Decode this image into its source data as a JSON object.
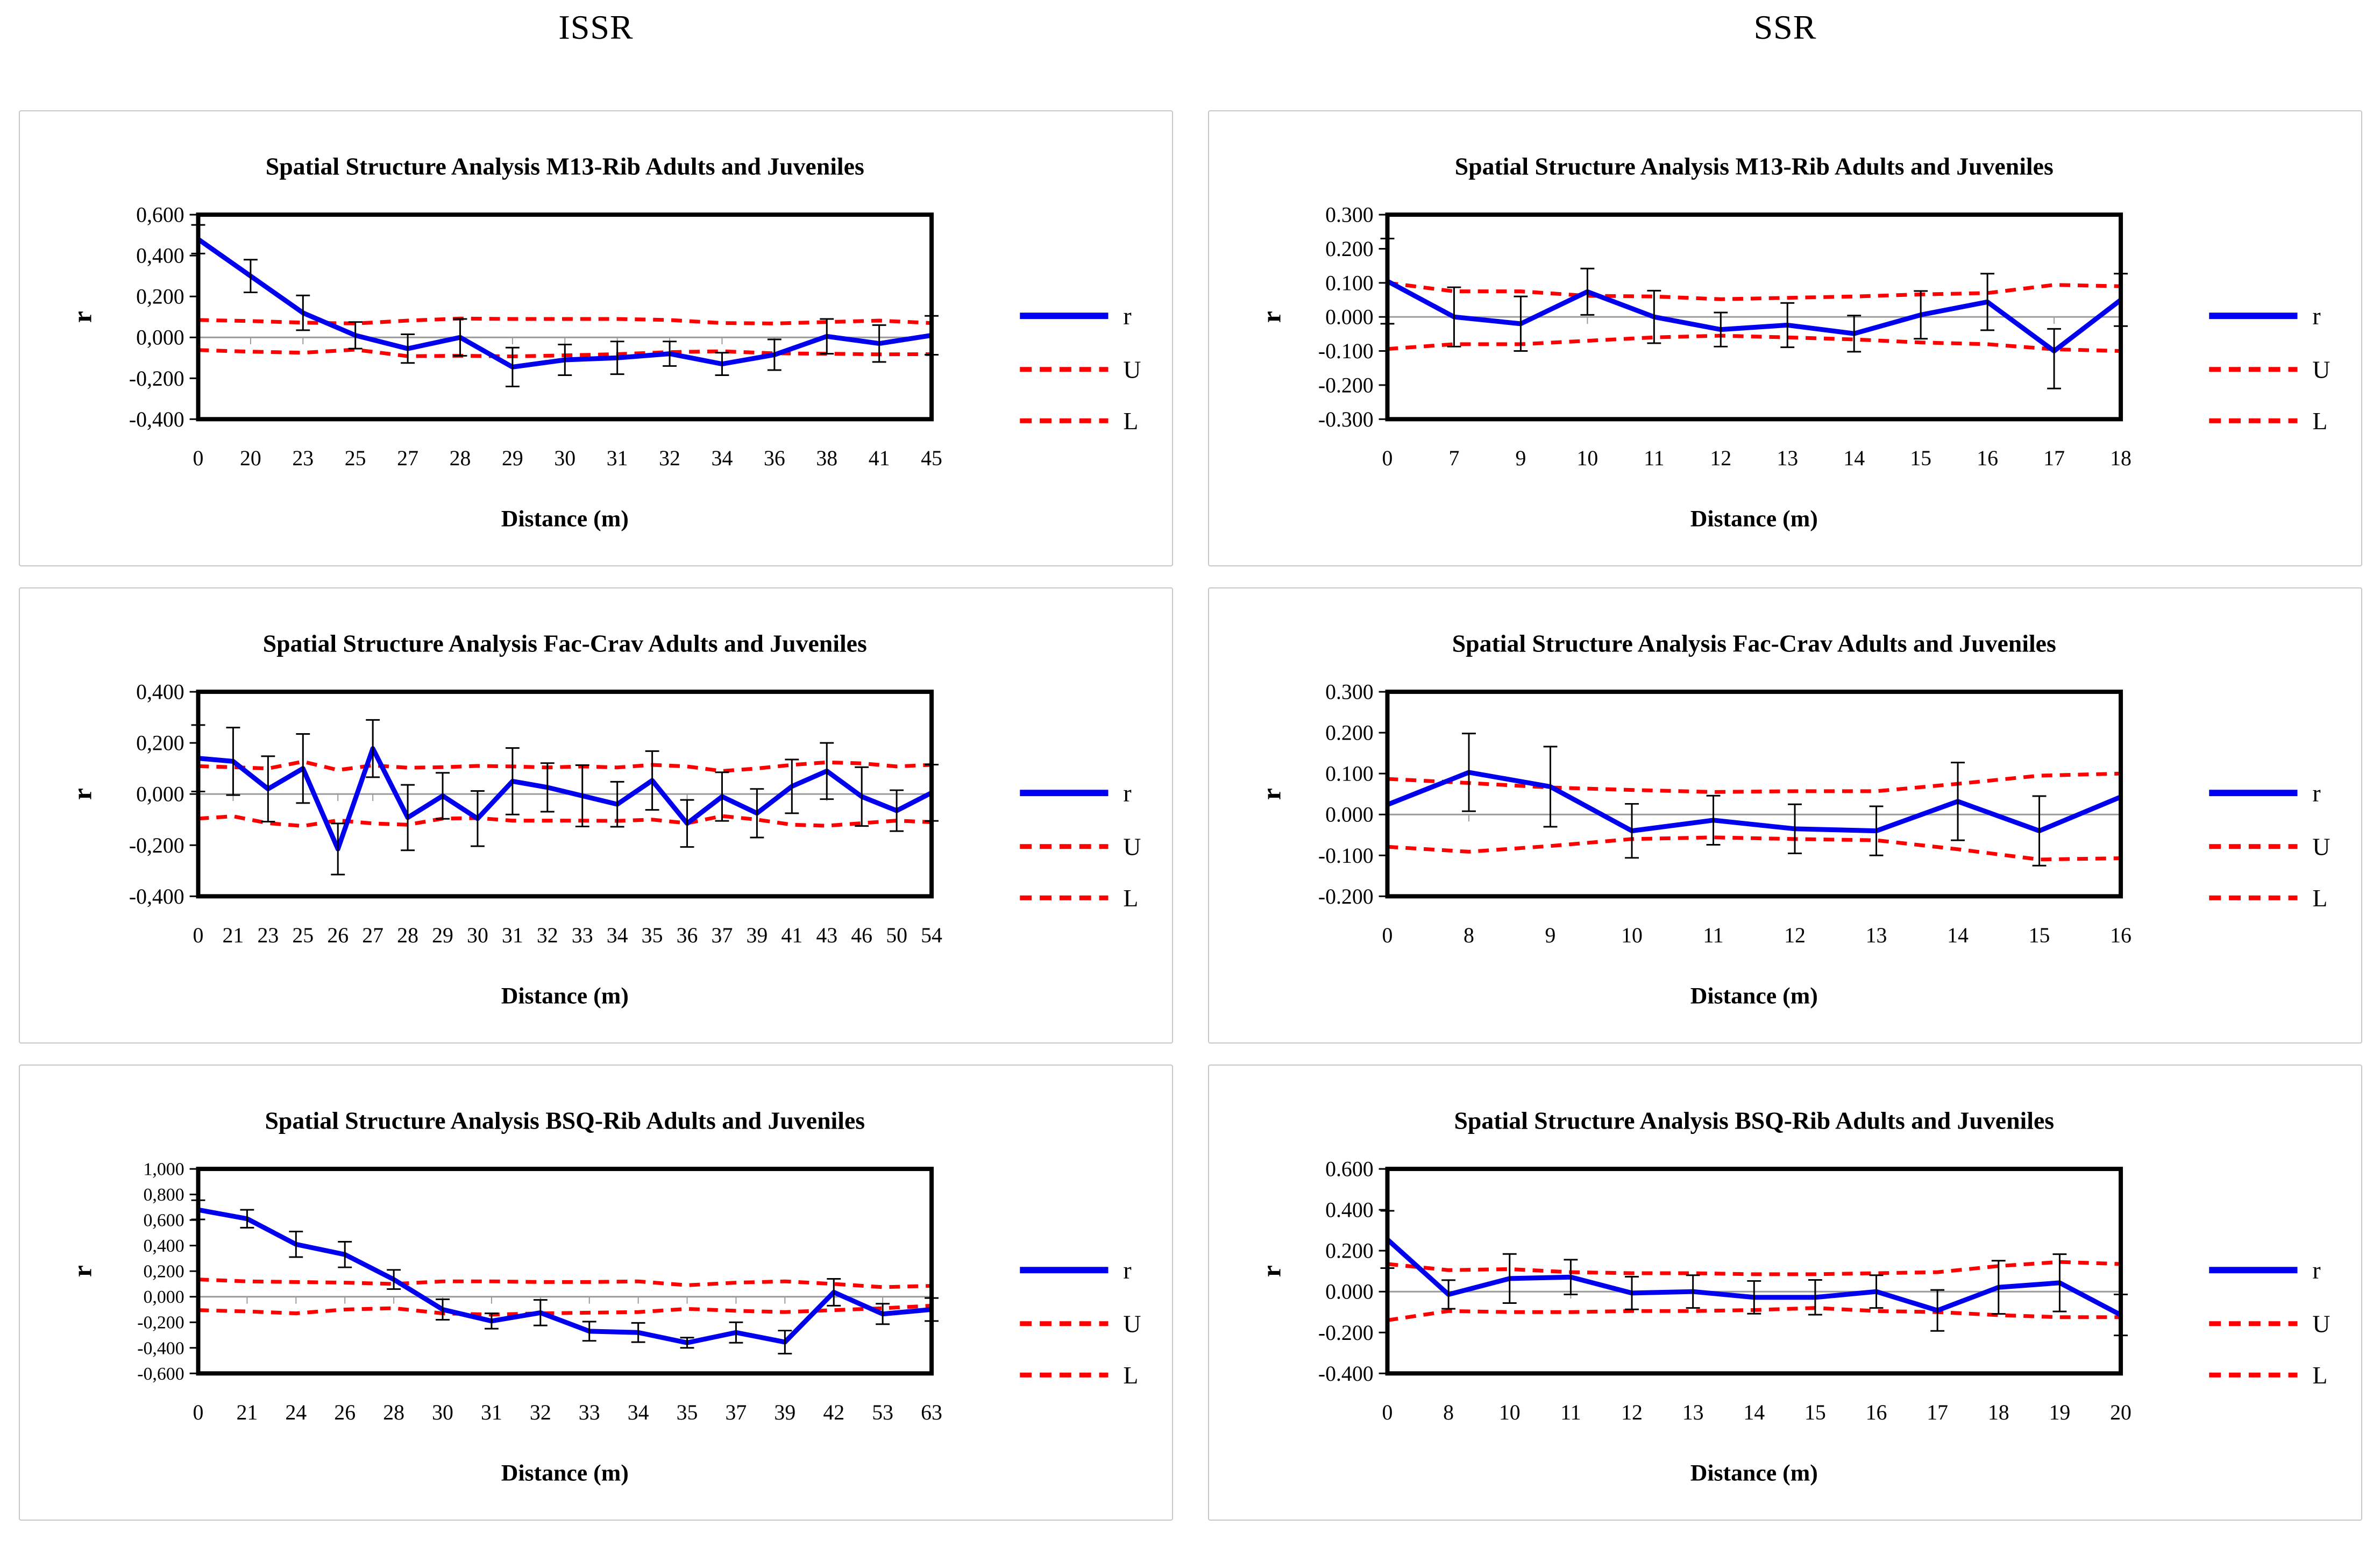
{
  "columns": [
    {
      "label": "ISSR"
    },
    {
      "label": "SSR"
    }
  ],
  "colors": {
    "r_line": "#0000ee",
    "bounds": "#ff0000",
    "zero_axis": "#9a9a9a",
    "frame": "#000000",
    "error_bar": "#000000",
    "panel_border": "#c8c8c8",
    "text": "#000000"
  },
  "chart_data": [
    {
      "id": "issr-m13-rib",
      "column": "ISSR",
      "type": "line",
      "title": "Spatial Structure Analysis M13-Rib Adults and Juveniles",
      "xlabel": "Distance (m)",
      "ylabel": "r",
      "grid": false,
      "legend_position": "right",
      "legend": [
        "r",
        "U",
        "L"
      ],
      "categories": [
        "0",
        "20",
        "23",
        "25",
        "27",
        "28",
        "29",
        "30",
        "31",
        "32",
        "34",
        "36",
        "38",
        "41",
        "45"
      ],
      "ylim": [
        -0.4,
        0.6
      ],
      "y_tick_labels": [
        "0,600",
        "0,400",
        "0,200",
        "0,000",
        "-0,200",
        "-0,400"
      ],
      "series": [
        {
          "name": "r",
          "style": "solid-blue",
          "values": [
            0.48,
            0.3,
            0.12,
            0.01,
            -0.055,
            0.0,
            -0.145,
            -0.11,
            -0.1,
            -0.08,
            -0.13,
            -0.085,
            0.005,
            -0.03,
            0.01
          ],
          "err_up": [
            0.07,
            0.08,
            0.085,
            0.065,
            0.07,
            0.09,
            0.095,
            0.075,
            0.08,
            0.06,
            0.055,
            0.075,
            0.085,
            0.09,
            0.095
          ],
          "err_dn": [
            0.07,
            0.08,
            0.085,
            0.065,
            0.07,
            0.09,
            0.095,
            0.075,
            0.08,
            0.06,
            0.055,
            0.075,
            0.085,
            0.09,
            0.095
          ]
        },
        {
          "name": "U",
          "style": "dashed-red",
          "values": [
            0.085,
            0.08,
            0.072,
            0.068,
            0.082,
            0.092,
            0.09,
            0.09,
            0.09,
            0.085,
            0.07,
            0.068,
            0.075,
            0.082,
            0.07
          ]
        },
        {
          "name": "L",
          "style": "dashed-red",
          "values": [
            -0.062,
            -0.07,
            -0.075,
            -0.06,
            -0.092,
            -0.09,
            -0.093,
            -0.088,
            -0.082,
            -0.072,
            -0.068,
            -0.078,
            -0.08,
            -0.083,
            -0.082
          ]
        }
      ]
    },
    {
      "id": "ssr-m13-rib",
      "column": "SSR",
      "type": "line",
      "title": "Spatial Structure Analysis M13-Rib Adults and Juveniles",
      "xlabel": "Distance (m)",
      "ylabel": "r",
      "grid": false,
      "legend_position": "right",
      "legend": [
        "r",
        "U",
        "L"
      ],
      "categories": [
        "0",
        "7",
        "9",
        "10",
        "11",
        "12",
        "13",
        "14",
        "15",
        "16",
        "17",
        "18"
      ],
      "ylim": [
        -0.3,
        0.3
      ],
      "y_tick_labels": [
        "0.300",
        "0.200",
        "0.100",
        "0.000",
        "-0.100",
        "-0.200",
        "-0.300"
      ],
      "series": [
        {
          "name": "r",
          "style": "solid-blue",
          "values": [
            0.105,
            0.0,
            -0.02,
            0.074,
            0.0,
            -0.037,
            -0.024,
            -0.049,
            0.006,
            0.044,
            -0.1,
            0.05
          ],
          "err_up": [
            0.125,
            0.087,
            0.08,
            0.068,
            0.077,
            0.05,
            0.065,
            0.053,
            0.07,
            0.083,
            0.065,
            0.077
          ],
          "err_dn": [
            0.125,
            0.087,
            0.08,
            0.068,
            0.077,
            0.05,
            0.065,
            0.053,
            0.07,
            0.083,
            0.11,
            0.077
          ]
        },
        {
          "name": "U",
          "style": "dashed-red",
          "values": [
            0.1,
            0.075,
            0.075,
            0.062,
            0.06,
            0.052,
            0.056,
            0.06,
            0.066,
            0.07,
            0.094,
            0.09
          ]
        },
        {
          "name": "L",
          "style": "dashed-red",
          "values": [
            -0.094,
            -0.08,
            -0.08,
            -0.07,
            -0.06,
            -0.055,
            -0.06,
            -0.066,
            -0.075,
            -0.08,
            -0.095,
            -0.1
          ]
        }
      ]
    },
    {
      "id": "issr-fac-crav",
      "column": "ISSR",
      "type": "line",
      "title": "Spatial Structure Analysis Fac-Crav Adults and Juveniles",
      "xlabel": "Distance (m)",
      "ylabel": "r",
      "grid": false,
      "legend_position": "right",
      "legend": [
        "r",
        "U",
        "L"
      ],
      "categories": [
        "0",
        "21",
        "23",
        "25",
        "26",
        "27",
        "28",
        "29",
        "30",
        "31",
        "32",
        "33",
        "34",
        "35",
        "36",
        "37",
        "39",
        "41",
        "43",
        "46",
        "50",
        "54"
      ],
      "ylim": [
        -0.4,
        0.4
      ],
      "y_tick_labels": [
        "0,400",
        "0,200",
        "0,000",
        "-0,200",
        "-0,400"
      ],
      "series": [
        {
          "name": "r",
          "style": "solid-blue",
          "values": [
            0.14,
            0.128,
            0.02,
            0.1,
            -0.215,
            0.178,
            -0.092,
            -0.007,
            -0.096,
            0.05,
            0.026,
            -0.007,
            -0.04,
            0.053,
            -0.115,
            -0.01,
            -0.075,
            0.03,
            0.09,
            -0.01,
            -0.065,
            0.005
          ],
          "err_up": [
            0.13,
            0.132,
            0.128,
            0.135,
            0.1,
            0.112,
            0.128,
            0.09,
            0.108,
            0.13,
            0.095,
            0.12,
            0.088,
            0.115,
            0.092,
            0.095,
            0.095,
            0.105,
            0.11,
            0.115,
            0.08,
            0.11
          ],
          "err_dn": [
            0.13,
            0.132,
            0.128,
            0.135,
            0.1,
            0.112,
            0.128,
            0.09,
            0.108,
            0.13,
            0.095,
            0.12,
            0.088,
            0.115,
            0.092,
            0.095,
            0.095,
            0.105,
            0.11,
            0.115,
            0.08,
            0.11
          ]
        },
        {
          "name": "U",
          "style": "dashed-red",
          "values": [
            0.109,
            0.105,
            0.1,
            0.127,
            0.094,
            0.112,
            0.103,
            0.105,
            0.11,
            0.108,
            0.104,
            0.108,
            0.104,
            0.114,
            0.108,
            0.09,
            0.1,
            0.114,
            0.124,
            0.12,
            0.108,
            0.114
          ]
        },
        {
          "name": "L",
          "style": "dashed-red",
          "values": [
            -0.096,
            -0.087,
            -0.114,
            -0.125,
            -0.103,
            -0.115,
            -0.12,
            -0.096,
            -0.094,
            -0.104,
            -0.104,
            -0.104,
            -0.105,
            -0.1,
            -0.114,
            -0.086,
            -0.1,
            -0.12,
            -0.124,
            -0.114,
            -0.104,
            -0.11
          ]
        }
      ]
    },
    {
      "id": "ssr-fac-crav",
      "column": "SSR",
      "type": "line",
      "title": "Spatial Structure Analysis Fac-Crav Adults and Juveniles",
      "xlabel": "Distance (m)",
      "ylabel": "r",
      "grid": false,
      "legend_position": "right",
      "legend": [
        "r",
        "U",
        "L"
      ],
      "categories": [
        "0",
        "8",
        "9",
        "10",
        "11",
        "12",
        "13",
        "14",
        "15",
        "16"
      ],
      "ylim": [
        -0.2,
        0.3
      ],
      "y_tick_labels": [
        "0.300",
        "0.200",
        "0.100",
        "0.000",
        "-0.100",
        "-0.200"
      ],
      "series": [
        {
          "name": "r",
          "style": "solid-blue",
          "values": [
            0.024,
            0.103,
            0.068,
            -0.04,
            -0.014,
            -0.035,
            -0.04,
            0.032,
            -0.04,
            0.043
          ],
          "err_up": [
            0,
            0.095,
            0.098,
            0.066,
            0.06,
            0.06,
            0.06,
            0.095,
            0.085,
            0
          ],
          "err_dn": [
            0,
            0.095,
            0.098,
            0.066,
            0.06,
            0.06,
            0.06,
            0.095,
            0.085,
            0
          ]
        },
        {
          "name": "U",
          "style": "dashed-red",
          "values": [
            0.087,
            0.077,
            0.066,
            0.06,
            0.055,
            0.057,
            0.057,
            0.075,
            0.095,
            0.1
          ]
        },
        {
          "name": "L",
          "style": "dashed-red",
          "values": [
            -0.079,
            -0.091,
            -0.077,
            -0.06,
            -0.056,
            -0.06,
            -0.063,
            -0.085,
            -0.11,
            -0.107
          ]
        }
      ]
    },
    {
      "id": "issr-bsq-rib",
      "column": "ISSR",
      "type": "line",
      "title": "Spatial Structure Analysis BSQ-Rib Adults and Juveniles",
      "xlabel": "Distance (m)",
      "ylabel": "r",
      "grid": false,
      "legend_position": "right",
      "legend": [
        "r",
        "U",
        "L"
      ],
      "categories": [
        "0",
        "21",
        "24",
        "26",
        "28",
        "30",
        "31",
        "32",
        "33",
        "34",
        "35",
        "37",
        "39",
        "42",
        "53",
        "63"
      ],
      "ylim": [
        -0.6,
        1.0
      ],
      "y_tick_labels": [
        "1,000",
        "0,800",
        "0,600",
        "0,400",
        "0,200",
        "0,000",
        "-0,200",
        "-0,400",
        "-0,600"
      ],
      "series": [
        {
          "name": "r",
          "style": "solid-blue",
          "values": [
            0.68,
            0.61,
            0.41,
            0.33,
            0.135,
            -0.1,
            -0.19,
            -0.125,
            -0.27,
            -0.28,
            -0.36,
            -0.28,
            -0.355,
            0.035,
            -0.135,
            -0.1
          ],
          "err_up": [
            0.075,
            0.07,
            0.1,
            0.1,
            0.075,
            0.08,
            0.06,
            0.1,
            0.075,
            0.075,
            0.04,
            0.08,
            0.09,
            0.105,
            0.08,
            0.09
          ],
          "err_dn": [
            0.075,
            0.07,
            0.1,
            0.1,
            0.075,
            0.08,
            0.06,
            0.1,
            0.075,
            0.075,
            0.04,
            0.08,
            0.09,
            0.105,
            0.08,
            0.09
          ]
        },
        {
          "name": "U",
          "style": "dashed-red",
          "values": [
            0.135,
            0.12,
            0.115,
            0.11,
            0.1,
            0.12,
            0.12,
            0.115,
            0.115,
            0.12,
            0.09,
            0.11,
            0.12,
            0.1,
            0.075,
            0.085
          ]
        },
        {
          "name": "L",
          "style": "dashed-red",
          "values": [
            -0.105,
            -0.115,
            -0.13,
            -0.1,
            -0.09,
            -0.13,
            -0.14,
            -0.13,
            -0.125,
            -0.12,
            -0.095,
            -0.11,
            -0.12,
            -0.105,
            -0.09,
            -0.07
          ]
        }
      ]
    },
    {
      "id": "ssr-bsq-rib",
      "column": "SSR",
      "type": "line",
      "title": "Spatial Structure Analysis BSQ-Rib Adults and Juveniles",
      "xlabel": "Distance (m)",
      "ylabel": "r",
      "grid": false,
      "legend_position": "right",
      "legend": [
        "r",
        "U",
        "L"
      ],
      "categories": [
        "0",
        "8",
        "10",
        "11",
        "12",
        "13",
        "14",
        "15",
        "16",
        "17",
        "18",
        "19",
        "20"
      ],
      "ylim": [
        -0.4,
        0.6
      ],
      "y_tick_labels": [
        "0.600",
        "0.400",
        "0.200",
        "0.000",
        "-0.200",
        "-0.400"
      ],
      "series": [
        {
          "name": "r",
          "style": "solid-blue",
          "values": [
            0.255,
            -0.014,
            0.064,
            0.071,
            -0.007,
            0.0,
            -0.028,
            -0.028,
            0.0,
            -0.092,
            0.021,
            0.043,
            -0.114
          ],
          "err_up": [
            0.14,
            0.07,
            0.12,
            0.085,
            0.08,
            0.08,
            0.08,
            0.085,
            0.08,
            0.1,
            0.13,
            0.14,
            0.1
          ],
          "err_dn": [
            0.14,
            0.07,
            0.12,
            0.085,
            0.08,
            0.08,
            0.08,
            0.085,
            0.08,
            0.1,
            0.13,
            0.14,
            0.1
          ]
        },
        {
          "name": "U",
          "style": "dashed-red",
          "values": [
            0.135,
            0.105,
            0.11,
            0.095,
            0.09,
            0.09,
            0.085,
            0.085,
            0.09,
            0.095,
            0.125,
            0.145,
            0.135
          ]
        },
        {
          "name": "L",
          "style": "dashed-red",
          "values": [
            -0.14,
            -0.095,
            -0.1,
            -0.1,
            -0.095,
            -0.095,
            -0.09,
            -0.08,
            -0.095,
            -0.1,
            -0.115,
            -0.125,
            -0.125
          ]
        }
      ]
    }
  ]
}
